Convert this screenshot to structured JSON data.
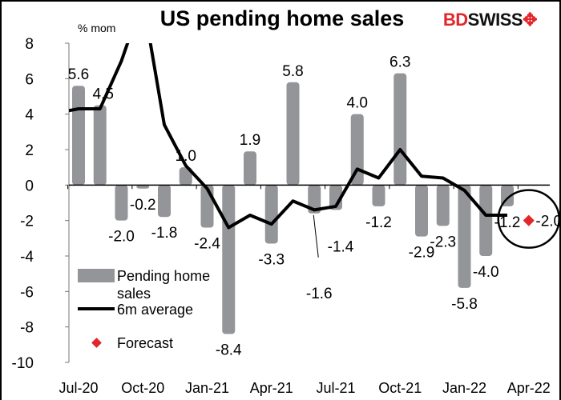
{
  "chart_data": {
    "type": "bar",
    "title": "US pending home sales",
    "ylabel": "% mom",
    "ylim": [
      -10,
      8
    ],
    "yticks": [
      -10,
      -8,
      -6,
      -4,
      -2,
      0,
      2,
      4,
      6,
      8
    ],
    "categories": [
      "Jul-20",
      "Aug-20",
      "Sep-20",
      "Oct-20",
      "Nov-20",
      "Dec-20",
      "Jan-21",
      "Feb-21",
      "Mar-21",
      "Apr-21",
      "May-21",
      "Jun-21",
      "Jul-21",
      "Aug-21",
      "Sep-21",
      "Oct-21",
      "Nov-21",
      "Dec-21",
      "Jan-22",
      "Feb-22",
      "Mar-22",
      "Apr-22"
    ],
    "xticklabels": [
      "Jul-20",
      "Oct-20",
      "Jan-21",
      "Apr-21",
      "Jul-21",
      "Oct-21",
      "Jan-22",
      "Apr-22"
    ],
    "series": [
      {
        "name": "Pending home sales",
        "type": "bar",
        "color": "#939598",
        "values": [
          5.6,
          4.5,
          -2.0,
          -0.2,
          -1.8,
          1.0,
          -2.4,
          -8.4,
          1.9,
          -3.3,
          5.8,
          -1.6,
          -1.4,
          4.0,
          -1.2,
          6.3,
          -2.9,
          -2.3,
          -5.8,
          -4.0,
          -1.2,
          null
        ],
        "labels": [
          "5.6",
          "4.5",
          "-2.0",
          "-0.2",
          "-1.8",
          "1.0",
          "-2.4",
          "-8.4",
          "1.9",
          "-3.3",
          "5.8",
          "-1.6",
          "-1.4",
          "4.0",
          "-1.2",
          "6.3",
          "-2.9",
          "-2.3",
          "-5.8",
          "-4.0",
          "-1.2",
          ""
        ]
      },
      {
        "name": "6m average",
        "type": "line",
        "color": "#000000",
        "values": [
          4.3,
          4.3,
          7.0,
          10.5,
          3.4,
          1.1,
          -0.2,
          -2.4,
          -1.7,
          -2.2,
          -0.9,
          -1.4,
          -1.2,
          0.9,
          0.4,
          2.0,
          0.5,
          0.4,
          -0.3,
          -1.7,
          -1.7,
          null
        ]
      },
      {
        "name": "Forecast",
        "type": "scatter",
        "color": "#e3262c",
        "values": [
          null,
          null,
          null,
          null,
          null,
          null,
          null,
          null,
          null,
          null,
          null,
          null,
          null,
          null,
          null,
          null,
          null,
          null,
          null,
          null,
          null,
          -2.0
        ],
        "labels": [
          "-2.0"
        ]
      }
    ],
    "legend": {
      "placement": "bottom-left",
      "entries": [
        "Pending home\nsales",
        "6m average",
        "Forecast"
      ]
    },
    "grid": false,
    "annotation": "circle around Apr-22 forecast"
  },
  "logo": {
    "part1": "BD",
    "part2": "SWISS"
  }
}
